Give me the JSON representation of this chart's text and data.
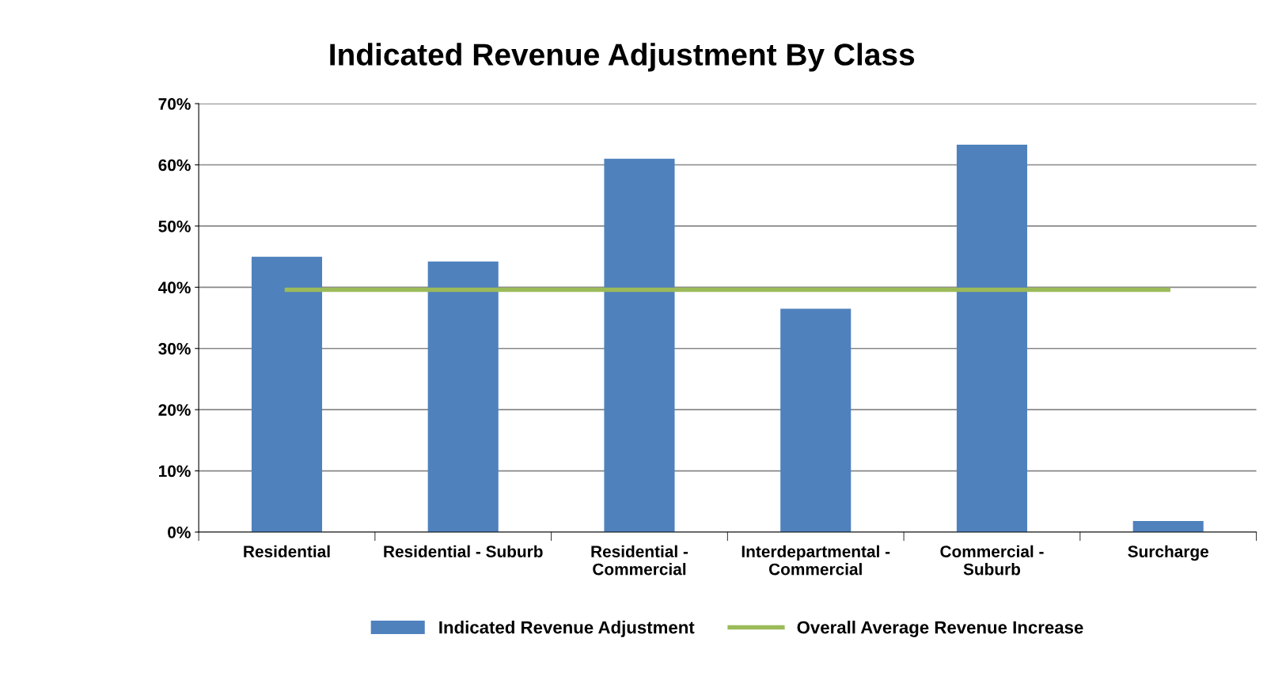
{
  "chart_data": {
    "type": "bar",
    "title": "Indicated Revenue Adjustment By Class",
    "categories": [
      "Residential",
      "Residential - Suburb",
      "Residential -\nCommercial",
      "Interdepartmental -\nCommercial",
      "Commercial -\nSuburb",
      "Surcharge"
    ],
    "series": [
      {
        "name": "Indicated Revenue Adjustment",
        "color": "#4f81bd",
        "values": [
          45,
          44.2,
          61,
          36.5,
          63.3,
          1.8
        ]
      },
      {
        "name": "Overall Average Revenue Increase",
        "type": "line",
        "color": "#9bbb59",
        "values": [
          39.6,
          39.6,
          39.6,
          39.6,
          39.6,
          39.6
        ]
      }
    ],
    "ylim": [
      0,
      70
    ],
    "yticks": [
      {
        "value": 0,
        "label": "0%"
      },
      {
        "value": 10,
        "label": "10%"
      },
      {
        "value": 20,
        "label": "20%"
      },
      {
        "value": 30,
        "label": "30%"
      },
      {
        "value": 40,
        "label": "40%"
      },
      {
        "value": 50,
        "label": "50%"
      },
      {
        "value": 60,
        "label": "60%"
      },
      {
        "value": 70,
        "label": "70%"
      }
    ],
    "grid": "y",
    "legend": "bottom",
    "marker": "none"
  }
}
